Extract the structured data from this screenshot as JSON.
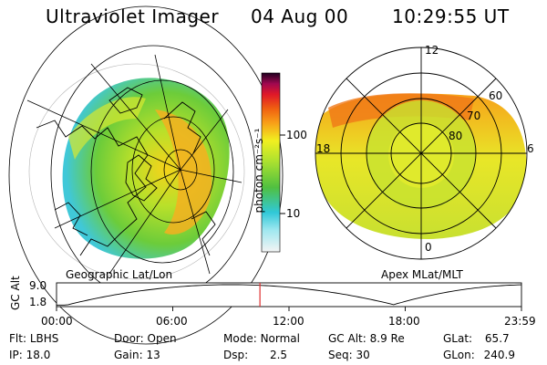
{
  "header": {
    "instrument": "Ultraviolet Imager",
    "date": "04 Aug 00",
    "time": "10:29:55 UT"
  },
  "left_panel": {
    "caption": "Geographic Lat/Lon"
  },
  "colorbar": {
    "label": "photon cm⁻²s⁻¹",
    "ticks": [
      "100",
      "10"
    ]
  },
  "right_panel": {
    "caption": "Apex MLat/MLT",
    "lat_labels": [
      "80",
      "70",
      "60"
    ],
    "mlt_labels": [
      "12",
      "18",
      "6",
      "0"
    ]
  },
  "altitude_plot": {
    "ylabel": "GC Alt",
    "yticks": [
      "9.0",
      "1.8"
    ],
    "xticks": [
      "00:00",
      "06:00",
      "12:00",
      "18:00",
      "23:59"
    ],
    "current_time_hours": 10.5
  },
  "info": {
    "row1": [
      {
        "label": "Flt:",
        "value": "LBHS"
      },
      {
        "label": "Door:",
        "value": "Open"
      },
      {
        "label": "Mode:",
        "value": "Normal"
      },
      {
        "label": "GC Alt:",
        "value": "8.9 Re"
      },
      {
        "label": "GLat:",
        "value": "65.7"
      }
    ],
    "row2": [
      {
        "label": "IP:",
        "value": "18.0"
      },
      {
        "label": "Gain:",
        "value": "13"
      },
      {
        "label": "Dsp:",
        "value": "2.5"
      },
      {
        "label": "Seq:",
        "value": "30"
      },
      {
        "label": "GLon:",
        "value": "240.9"
      }
    ]
  },
  "colors": {
    "background": "#ffffff",
    "ink": "#000000",
    "marker": "#e03030"
  }
}
